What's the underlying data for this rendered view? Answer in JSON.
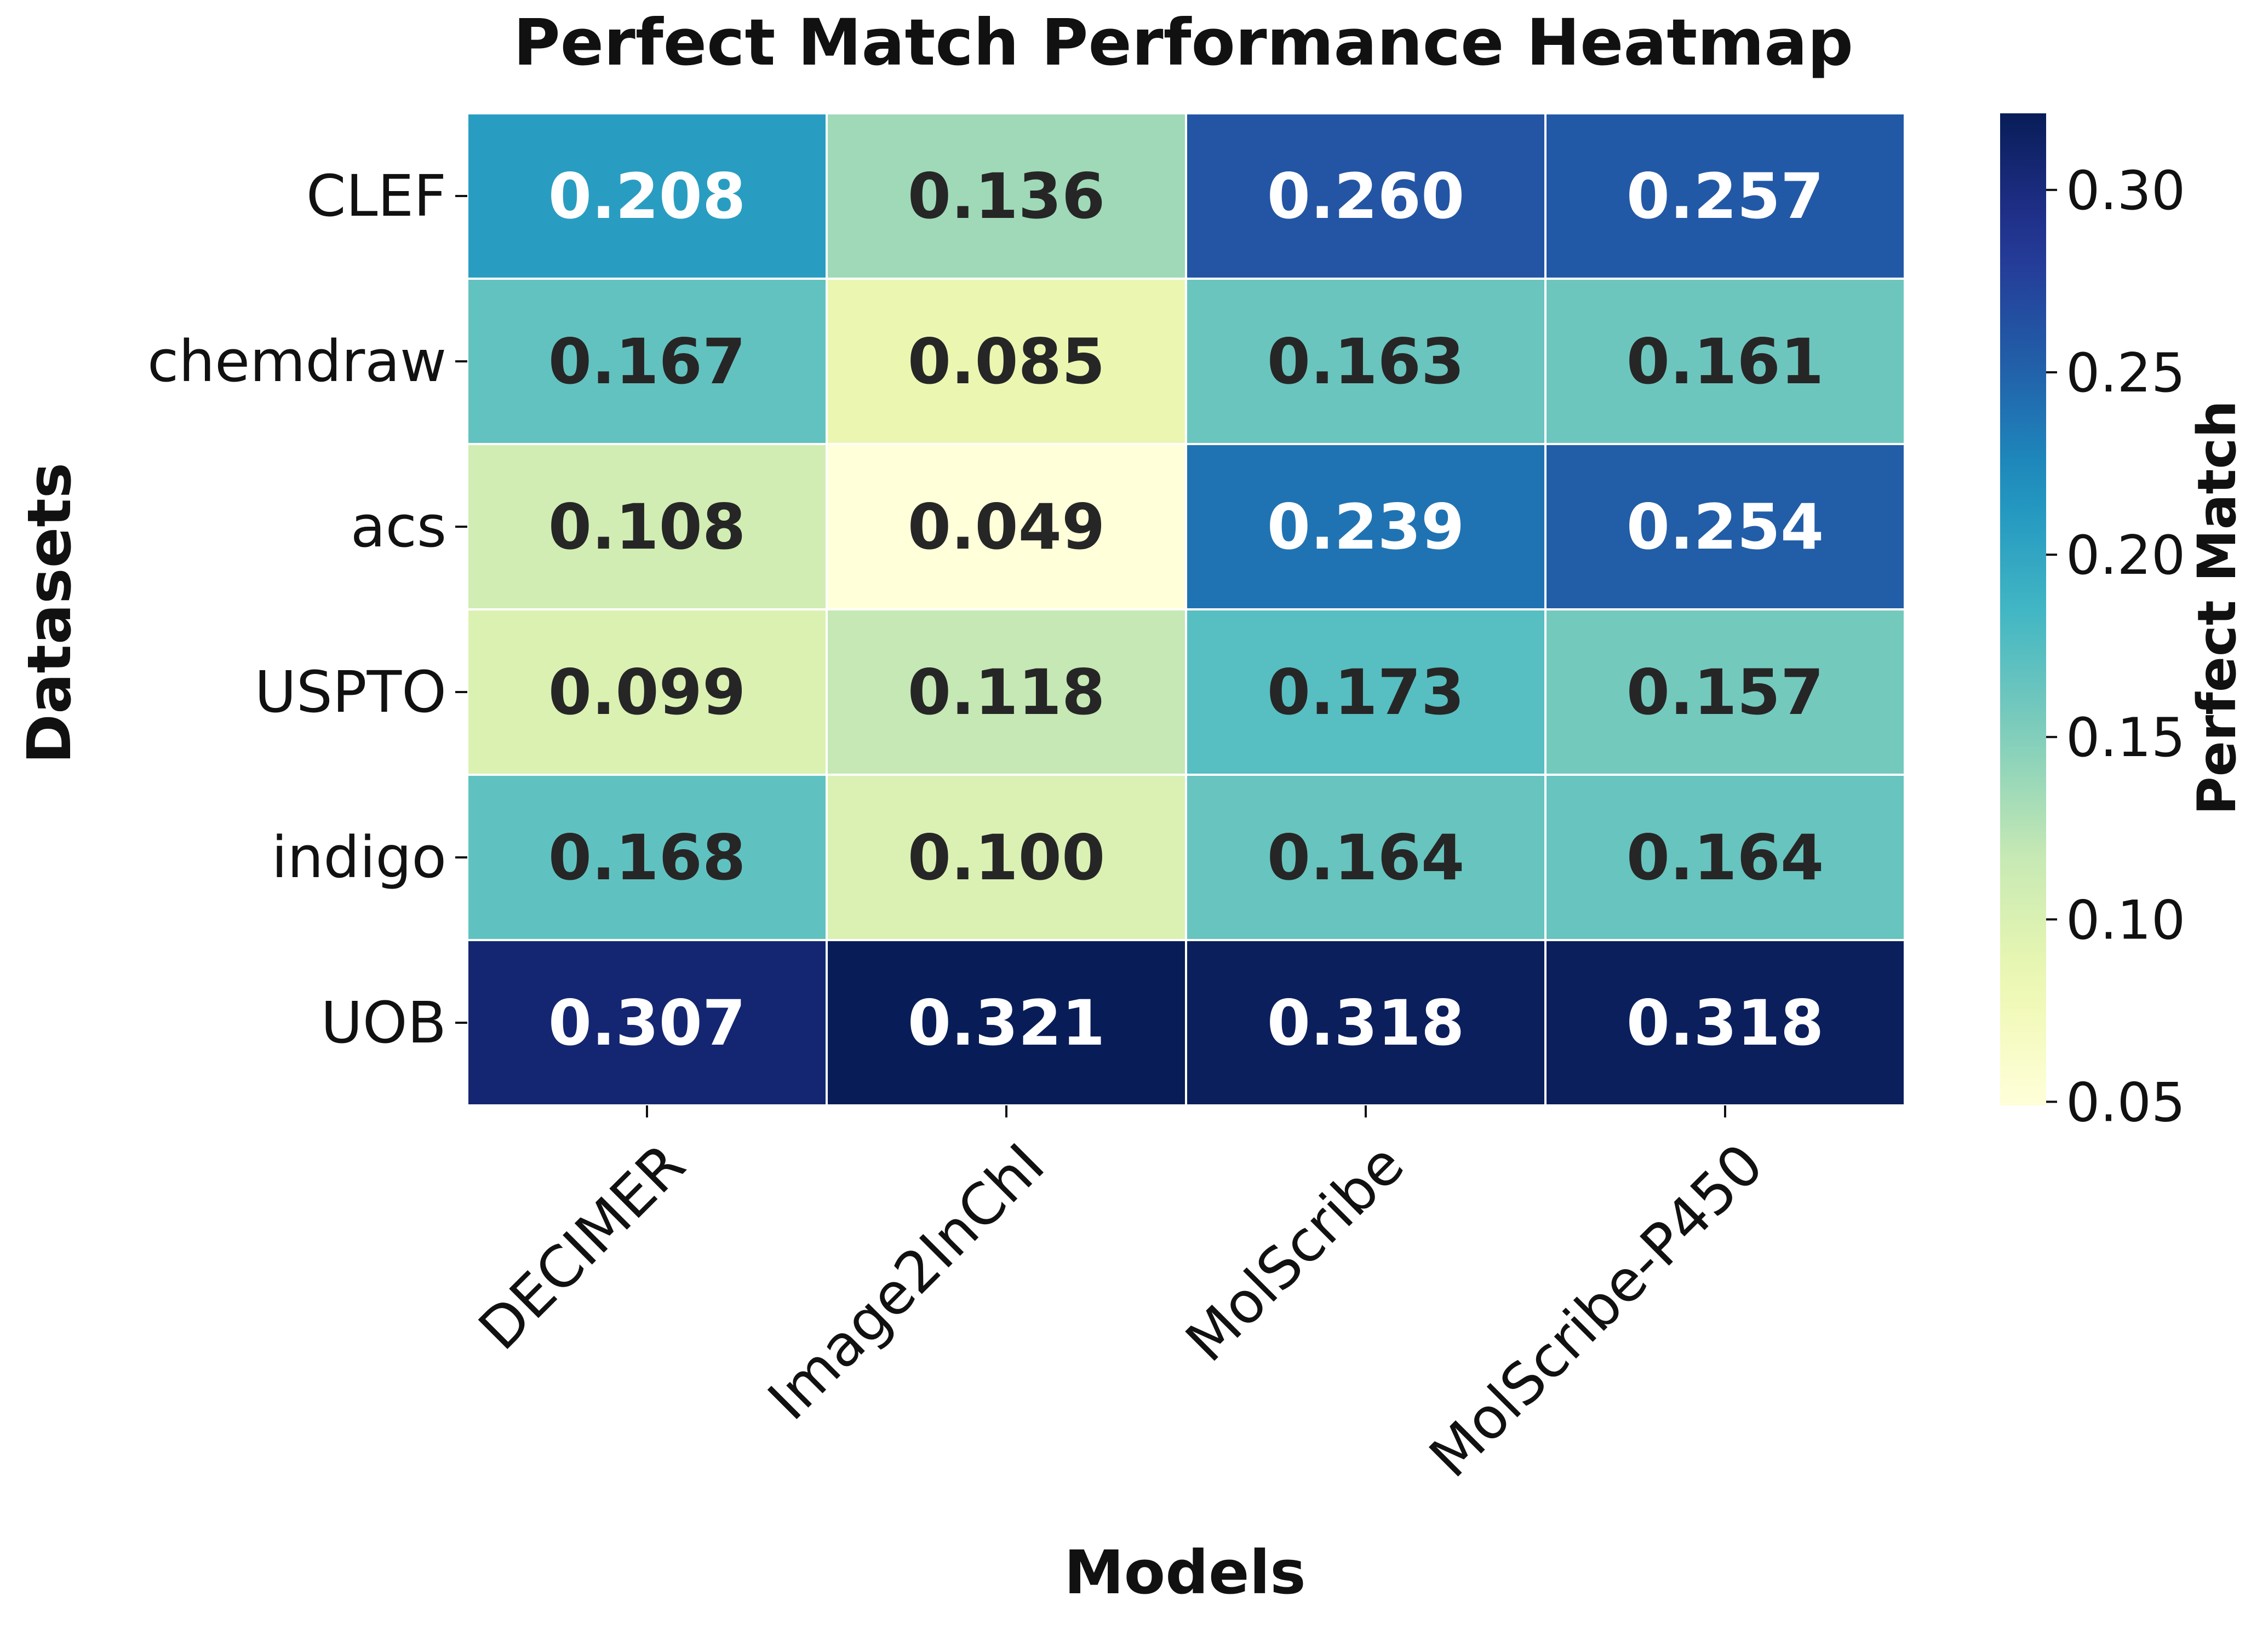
{
  "chart_data": {
    "type": "heatmap",
    "title": "Perfect Match Performance Heatmap",
    "xlabel": "Models",
    "ylabel": "Datasets",
    "x_categories": [
      "DECIMER",
      "Image2InChI",
      "MolScribe",
      "MolScribe-P450"
    ],
    "y_categories": [
      "CLEF",
      "chemdraw",
      "acs",
      "USPTO",
      "indigo",
      "UOB"
    ],
    "values": [
      [
        0.208,
        0.136,
        0.26,
        0.257
      ],
      [
        0.167,
        0.085,
        0.163,
        0.161
      ],
      [
        0.108,
        0.049,
        0.239,
        0.254
      ],
      [
        0.099,
        0.118,
        0.173,
        0.157
      ],
      [
        0.168,
        0.1,
        0.164,
        0.164
      ],
      [
        0.307,
        0.321,
        0.318,
        0.318
      ]
    ],
    "value_labels": [
      [
        "0.208",
        "0.136",
        "0.260",
        "0.257"
      ],
      [
        "0.167",
        "0.085",
        "0.163",
        "0.161"
      ],
      [
        "0.108",
        "0.049",
        "0.239",
        "0.254"
      ],
      [
        "0.099",
        "0.118",
        "0.173",
        "0.157"
      ],
      [
        "0.168",
        "0.100",
        "0.164",
        "0.164"
      ],
      [
        "0.307",
        "0.321",
        "0.318",
        "0.318"
      ]
    ],
    "colormap": "YlGnBu",
    "vmin": 0.049,
    "vmax": 0.321,
    "colorbar": {
      "label": "Perfect Match",
      "ticks": [
        0.05,
        0.1,
        0.15,
        0.2,
        0.25,
        0.3
      ],
      "tick_labels": [
        "0.05",
        "0.10",
        "0.15",
        "0.20",
        "0.25",
        "0.30"
      ],
      "placement": "right"
    },
    "annotations_on": true,
    "grid": false,
    "cell_border_color": "#ffffff",
    "text_color_dark": "#262626",
    "text_color_light": "#ffffff"
  }
}
